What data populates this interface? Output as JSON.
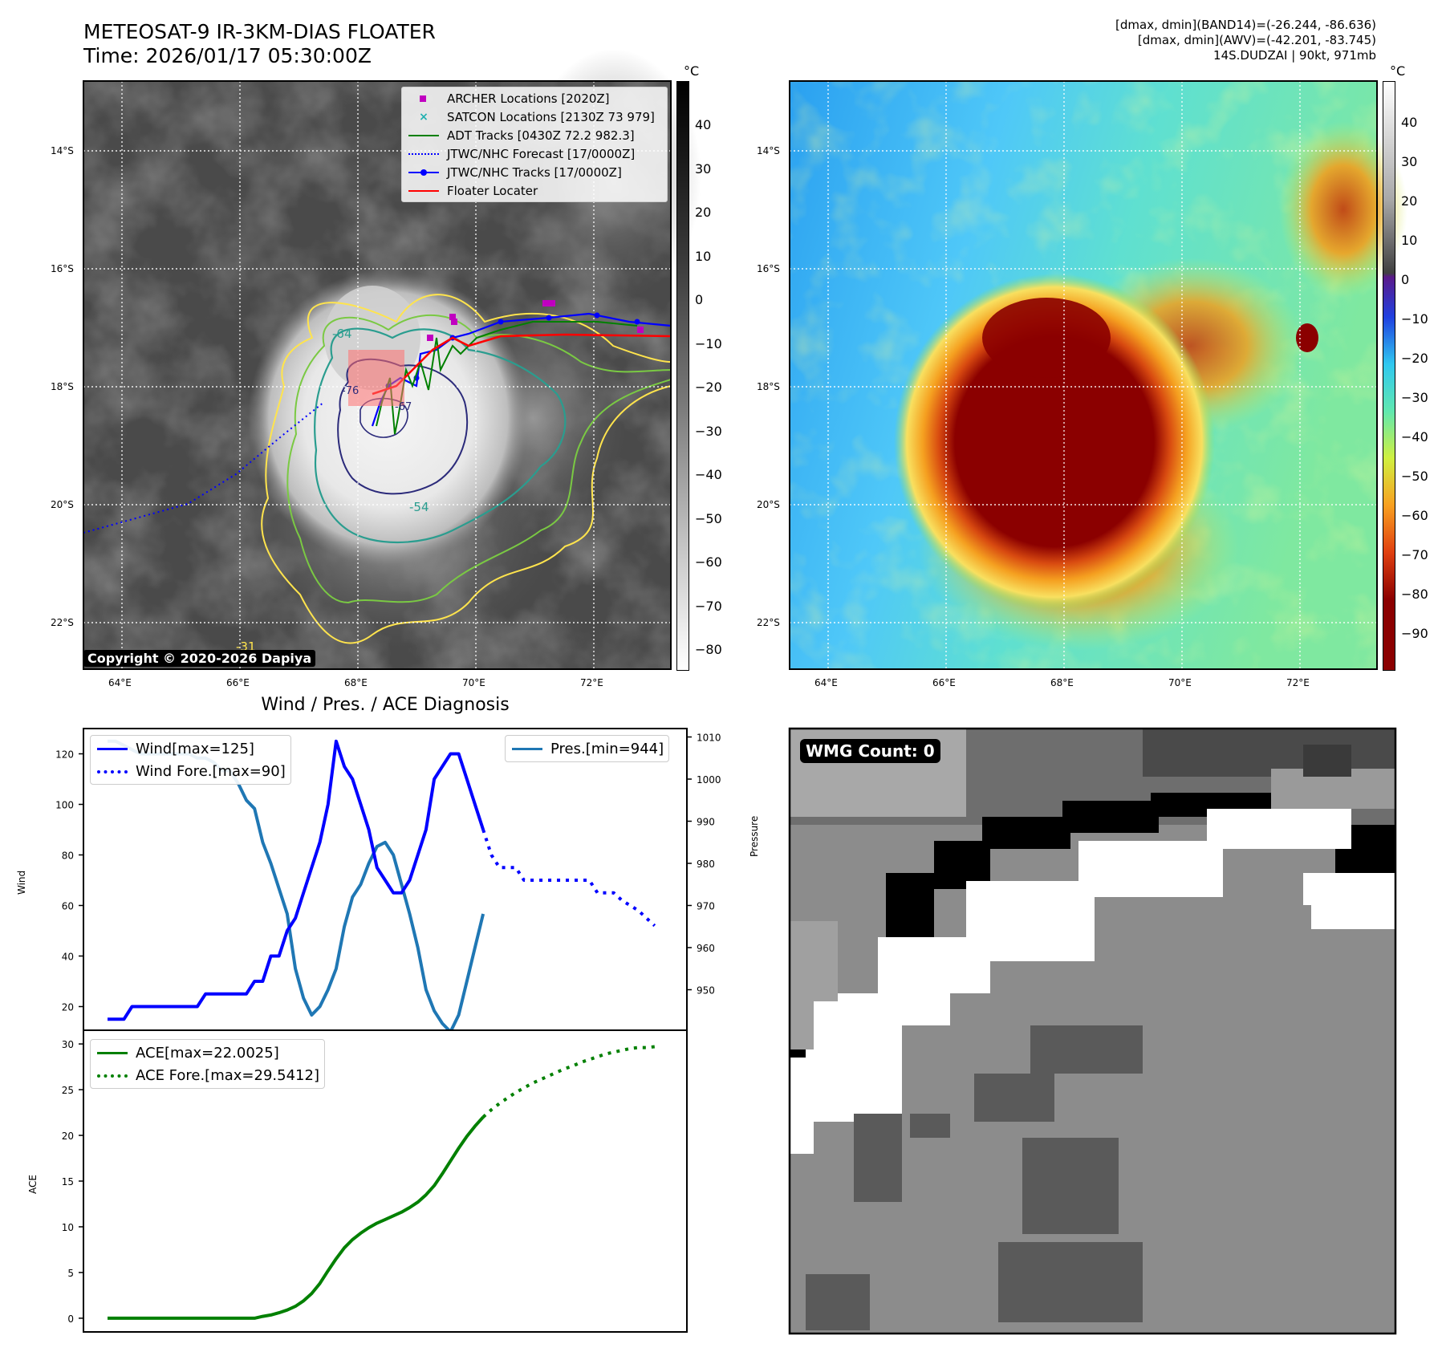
{
  "header": {
    "title_line1": "METEOSAT-9 IR-3KM-DIAS FLOATER",
    "title_line2": "Time: 2026/01/17 05:30:00Z",
    "meta_line1": "[dmax, dmin](BAND14)=(-26.244, -86.636)",
    "meta_line2": "[dmax, dmin](AWV)=(-42.201, -83.745)",
    "meta_line3": "14S.DUDZAI | 90kt, 971mb"
  },
  "map": {
    "lat_labels": [
      "14°S",
      "16°S",
      "18°S",
      "20°S",
      "22°S"
    ],
    "lon_labels": [
      "64°E",
      "66°E",
      "68°E",
      "70°E",
      "72°E"
    ],
    "copyright": "Copyright © 2020-2026 Dapiya",
    "contour_labels": [
      "-64",
      "-54",
      "-31",
      "-76",
      "-67"
    ]
  },
  "ir_colorbar": {
    "unit": "°C",
    "ticks": [
      "40",
      "30",
      "20",
      "10",
      "0",
      "−10",
      "−20",
      "−30",
      "−40",
      "−50",
      "−60",
      "−70",
      "−80"
    ]
  },
  "bd_colorbar": {
    "unit": "°C",
    "ticks": [
      "40",
      "30",
      "20",
      "10",
      "0",
      "−10",
      "−20",
      "−30",
      "−40",
      "−50",
      "−60",
      "−70",
      "−80",
      "−90"
    ]
  },
  "map_legend": {
    "items": [
      {
        "label": "ARCHER Locations [2020Z]",
        "color": "#c000c0",
        "kind": "square"
      },
      {
        "label": "SATCON Locations [2130Z 73 979]",
        "color": "#20b0b0",
        "kind": "cross"
      },
      {
        "label": "ADT Tracks [0430Z 72.2 982.3]",
        "color": "#008000",
        "kind": "line"
      },
      {
        "label": "JTWC/NHC Forecast [17/0000Z]",
        "color": "#0000ff",
        "kind": "dotted"
      },
      {
        "label": "JTWC/NHC Tracks [17/0000Z]",
        "color": "#0000ff",
        "kind": "line-dot"
      },
      {
        "label": "Floater Locater",
        "color": "#ff0000",
        "kind": "line"
      }
    ]
  },
  "diag": {
    "title": "Wind / Pres. / ACE Diagnosis",
    "wind_ylabel": "Wind",
    "pres_ylabel": "Pressure",
    "ace_ylabel": "ACE",
    "wind_legend": [
      "Wind[max=125]",
      "Wind Fore.[max=90]"
    ],
    "pres_legend": [
      "Pres.[min=944]"
    ],
    "ace_legend": [
      "ACE[max=22.0025]",
      "ACE Fore.[max=29.5412]"
    ]
  },
  "wmg": {
    "label": "WMG Count: 0"
  },
  "chart_data": [
    {
      "type": "line",
      "title": "Wind / Pres. / ACE Diagnosis",
      "ylabel": "Wind",
      "ylim": [
        10,
        130
      ],
      "yticks": [
        20,
        40,
        60,
        80,
        100,
        120
      ],
      "x_count": 69,
      "series": [
        {
          "name": "Wind[max=125]",
          "color": "#0000ff",
          "style": "solid",
          "values": [
            15,
            15,
            15,
            20,
            20,
            20,
            20,
            20,
            20,
            20,
            20,
            20,
            25,
            25,
            25,
            25,
            25,
            25,
            30,
            30,
            40,
            40,
            50,
            55,
            65,
            75,
            85,
            100,
            125,
            115,
            110,
            100,
            90,
            75,
            70,
            65,
            65,
            70,
            80,
            90,
            110,
            115,
            120,
            120,
            110,
            100,
            90
          ]
        },
        {
          "name": "Wind Fore.[max=90]",
          "color": "#0000ff",
          "style": "dotted",
          "x_start": 46,
          "values": [
            90,
            80,
            75,
            75,
            75,
            70,
            70,
            70,
            70,
            70,
            70,
            70,
            70,
            70,
            65,
            65,
            65,
            62,
            60,
            58,
            55,
            52
          ]
        }
      ]
    },
    {
      "type": "line",
      "ylabel": "Pressure",
      "ylim": [
        940,
        1012
      ],
      "yticks": [
        950,
        960,
        970,
        980,
        990,
        1000,
        1010
      ],
      "series": [
        {
          "name": "Pres.[min=944]",
          "color": "#1f77b4",
          "style": "solid",
          "values": [
            1009,
            1009,
            1008,
            1007,
            1006,
            1006,
            1006,
            1006,
            1006,
            1006,
            1006,
            1005,
            1005,
            1004,
            1002,
            1002,
            999,
            995,
            993,
            985,
            980,
            974,
            968,
            955,
            948,
            944,
            946,
            950,
            955,
            965,
            972,
            975,
            980,
            984,
            985,
            982,
            975,
            968,
            960,
            950,
            945,
            942,
            940,
            944,
            952,
            960,
            968
          ]
        }
      ]
    },
    {
      "type": "line",
      "ylabel": "ACE",
      "ylim": [
        -1.5,
        31.5
      ],
      "yticks": [
        0,
        5,
        10,
        15,
        20,
        25,
        30
      ],
      "series": [
        {
          "name": "ACE[max=22.0025]",
          "color": "#008000",
          "style": "solid",
          "values": [
            0,
            0,
            0,
            0,
            0,
            0,
            0,
            0,
            0,
            0,
            0,
            0,
            0,
            0,
            0,
            0,
            0,
            0,
            0,
            0.2,
            0.35,
            0.6,
            0.9,
            1.3,
            1.9,
            2.7,
            3.8,
            5.2,
            6.5,
            7.7,
            8.6,
            9.3,
            9.9,
            10.4,
            10.8,
            11.2,
            11.6,
            12.1,
            12.7,
            13.5,
            14.5,
            15.8,
            17.2,
            18.6,
            19.9,
            21.0,
            22.0
          ]
        },
        {
          "name": "ACE Fore.[max=29.5412]",
          "color": "#008000",
          "style": "dotted",
          "x_start": 46,
          "values": [
            22.0,
            22.8,
            23.5,
            24.1,
            24.7,
            25.2,
            25.7,
            26.1,
            26.5,
            26.9,
            27.3,
            27.6,
            28.0,
            28.3,
            28.6,
            28.9,
            29.1,
            29.3,
            29.5,
            29.6,
            29.6,
            29.7
          ]
        }
      ]
    }
  ]
}
